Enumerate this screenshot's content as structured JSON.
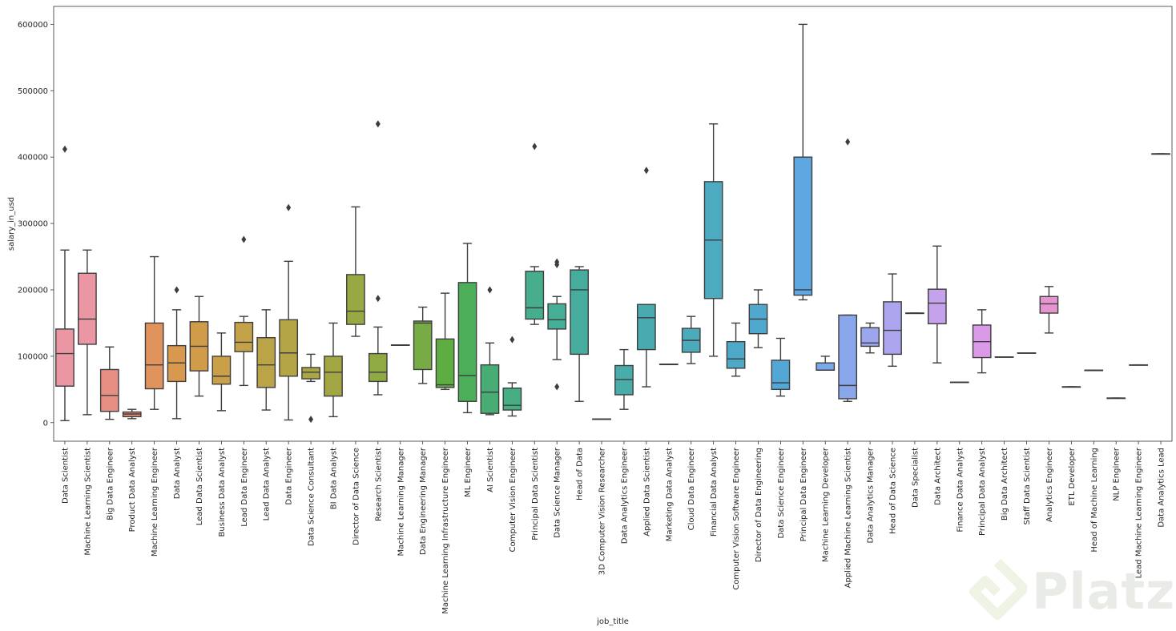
{
  "chart_data": {
    "type": "box",
    "xlabel": "job_title",
    "ylabel": "salary_in_usd",
    "ylim": [
      -28000,
      627000
    ],
    "yticks": [
      0,
      100000,
      200000,
      300000,
      400000,
      500000,
      600000
    ],
    "ytick_labels": [
      "0",
      "100000",
      "200000",
      "300000",
      "400000",
      "500000",
      "600000"
    ],
    "legend": "none",
    "grid": false,
    "boxes": [
      {
        "label": "Data Scientist",
        "color": "#ea96a3",
        "q1": 55000,
        "median": 104000,
        "q3": 141000,
        "whislo": 3000,
        "whishi": 260000,
        "fliers": [
          412000
        ]
      },
      {
        "label": "Machine Learning Scientist",
        "color": "#ea96a3",
        "q1": 118000,
        "median": 156000,
        "q3": 225000,
        "whislo": 12000,
        "whishi": 260000,
        "fliers": []
      },
      {
        "label": "Big Data Engineer",
        "color": "#e88f83",
        "q1": 17000,
        "median": 41000,
        "q3": 80000,
        "whislo": 5000,
        "whishi": 114000,
        "fliers": []
      },
      {
        "label": "Product Data Analyst",
        "color": "#e88e6e",
        "q1": 9000,
        "median": 13000,
        "q3": 16000,
        "whislo": 6000,
        "whishi": 20000,
        "fliers": []
      },
      {
        "label": "Machine Learning Engineer",
        "color": "#e0935c",
        "q1": 51000,
        "median": 87000,
        "q3": 150000,
        "whislo": 20000,
        "whishi": 250000,
        "fliers": []
      },
      {
        "label": "Data Analyst",
        "color": "#d8984e",
        "q1": 62000,
        "median": 90000,
        "q3": 116000,
        "whislo": 6000,
        "whishi": 170000,
        "fliers": [
          200000
        ]
      },
      {
        "label": "Lead Data Scientist",
        "color": "#d09c4a",
        "q1": 78000,
        "median": 115000,
        "q3": 152000,
        "whislo": 40000,
        "whishi": 190000,
        "fliers": []
      },
      {
        "label": "Business Data Analyst",
        "color": "#c99f48",
        "q1": 58000,
        "median": 70000,
        "q3": 100000,
        "whislo": 18000,
        "whishi": 135000,
        "fliers": []
      },
      {
        "label": "Lead Data Engineer",
        "color": "#c3a24a",
        "q1": 107000,
        "median": 121000,
        "q3": 151000,
        "whislo": 56000,
        "whishi": 160000,
        "fliers": [
          276000
        ]
      },
      {
        "label": "Lead Data Analyst",
        "color": "#bba447",
        "q1": 53000,
        "median": 87000,
        "q3": 128000,
        "whislo": 19000,
        "whishi": 170000,
        "fliers": []
      },
      {
        "label": "Data Engineer",
        "color": "#b4a547",
        "q1": 70000,
        "median": 105000,
        "q3": 155000,
        "whislo": 4000,
        "whishi": 243000,
        "fliers": [
          324000
        ]
      },
      {
        "label": "Data Science Consultant",
        "color": "#aba645",
        "q1": 66000,
        "median": 76000,
        "q3": 83000,
        "whislo": 62000,
        "whishi": 103000,
        "fliers": [
          5000
        ]
      },
      {
        "label": "BI Data Analyst",
        "color": "#a2a744",
        "q1": 40000,
        "median": 76000,
        "q3": 100000,
        "whislo": 9000,
        "whishi": 150000,
        "fliers": []
      },
      {
        "label": "Director of Data Science",
        "color": "#98a843",
        "q1": 148000,
        "median": 168000,
        "q3": 223000,
        "whislo": 130000,
        "whishi": 325000,
        "fliers": []
      },
      {
        "label": "Research Scientist",
        "color": "#8fa943",
        "q1": 62000,
        "median": 76000,
        "q3": 104000,
        "whislo": 42000,
        "whishi": 144000,
        "fliers": [
          187000,
          450000
        ]
      },
      {
        "label": "Machine Learning Manager",
        "color": "#84aa43",
        "q1": 117000,
        "median": 117000,
        "q3": 117000,
        "whislo": 117000,
        "whishi": 117000,
        "fliers": []
      },
      {
        "label": "Data Engineering Manager",
        "color": "#77ab45",
        "q1": 80000,
        "median": 150000,
        "q3": 153000,
        "whislo": 59000,
        "whishi": 174000,
        "fliers": []
      },
      {
        "label": "Machine Learning Infrastructure Engineer",
        "color": "#5ead42",
        "q1": 53000,
        "median": 57000,
        "q3": 126000,
        "whislo": 50000,
        "whishi": 195000,
        "fliers": []
      },
      {
        "label": "ML Engineer",
        "color": "#4dae5a",
        "q1": 32000,
        "median": 71000,
        "q3": 211000,
        "whislo": 15000,
        "whishi": 270000,
        "fliers": []
      },
      {
        "label": "AI Scientist",
        "color": "#48ad74",
        "q1": 14000,
        "median": 46000,
        "q3": 87000,
        "whislo": 12000,
        "whishi": 120000,
        "fliers": [
          200000
        ]
      },
      {
        "label": "Computer Vision Engineer",
        "color": "#47ad82",
        "q1": 19000,
        "median": 26000,
        "q3": 52000,
        "whislo": 10000,
        "whishi": 60000,
        "fliers": [
          125000
        ]
      },
      {
        "label": "Principal Data Scientist",
        "color": "#46ae8d",
        "q1": 156000,
        "median": 173000,
        "q3": 228000,
        "whislo": 148000,
        "whishi": 235000,
        "fliers": [
          416000
        ]
      },
      {
        "label": "Data Science Manager",
        "color": "#46ad96",
        "q1": 141000,
        "median": 155000,
        "q3": 179000,
        "whislo": 95000,
        "whishi": 190000,
        "fliers": [
          54000,
          238000,
          242000
        ]
      },
      {
        "label": "Head of Data",
        "color": "#46ad9e",
        "q1": 103000,
        "median": 200000,
        "q3": 230000,
        "whislo": 32000,
        "whishi": 235000,
        "fliers": []
      },
      {
        "label": "3D Computer Vision Researcher",
        "color": "#47aca5",
        "q1": 5500,
        "median": 5500,
        "q3": 5500,
        "whislo": 5500,
        "whishi": 5500,
        "fliers": []
      },
      {
        "label": "Data Analytics Engineer",
        "color": "#48acaa",
        "q1": 42000,
        "median": 65000,
        "q3": 86000,
        "whislo": 20000,
        "whishi": 110000,
        "fliers": []
      },
      {
        "label": "Applied Data Scientist",
        "color": "#49abb0",
        "q1": 110000,
        "median": 158000,
        "q3": 178000,
        "whislo": 54000,
        "whishi": 178000,
        "fliers": [
          380000
        ]
      },
      {
        "label": "Marketing Data Analyst",
        "color": "#4aabb5",
        "q1": 88000,
        "median": 88000,
        "q3": 88000,
        "whislo": 88000,
        "whishi": 88000,
        "fliers": []
      },
      {
        "label": "Cloud Data Engineer",
        "color": "#4babba",
        "q1": 106000,
        "median": 124000,
        "q3": 142000,
        "whislo": 89000,
        "whishi": 160000,
        "fliers": []
      },
      {
        "label": "Financial Data Analyst",
        "color": "#4caac1",
        "q1": 187000,
        "median": 275000,
        "q3": 363000,
        "whislo": 100000,
        "whishi": 450000,
        "fliers": []
      },
      {
        "label": "Computer Vision Software Engineer",
        "color": "#4ea9c8",
        "q1": 82000,
        "median": 96000,
        "q3": 122000,
        "whislo": 70000,
        "whishi": 150000,
        "fliers": []
      },
      {
        "label": "Director of Data Engineering",
        "color": "#50a8cf",
        "q1": 134000,
        "median": 156000,
        "q3": 178000,
        "whislo": 113000,
        "whishi": 200000,
        "fliers": []
      },
      {
        "label": "Data Science Engineer",
        "color": "#52a7d7",
        "q1": 50000,
        "median": 60000,
        "q3": 94000,
        "whislo": 40000,
        "whishi": 127000,
        "fliers": []
      },
      {
        "label": "Principal Data Engineer",
        "color": "#5ea7e1",
        "q1": 192000,
        "median": 200000,
        "q3": 400000,
        "whislo": 185000,
        "whishi": 600000,
        "fliers": []
      },
      {
        "label": "Machine Learning Developer",
        "color": "#7aa8e8",
        "q1": 79000,
        "median": 79000,
        "q3": 90000,
        "whislo": 79000,
        "whishi": 100000,
        "fliers": []
      },
      {
        "label": "Applied Machine Learning Scientist",
        "color": "#8aa6ea",
        "q1": 36000,
        "median": 56000,
        "q3": 162000,
        "whislo": 32000,
        "whishi": 162000,
        "fliers": [
          423000
        ]
      },
      {
        "label": "Data Analytics Manager",
        "color": "#9ba6ec",
        "q1": 115000,
        "median": 120000,
        "q3": 143000,
        "whislo": 105000,
        "whishi": 150000,
        "fliers": []
      },
      {
        "label": "Head of Data Science",
        "color": "#aaa5ec",
        "q1": 103000,
        "median": 139000,
        "q3": 182000,
        "whislo": 85000,
        "whishi": 224000,
        "fliers": []
      },
      {
        "label": "Data Specialist",
        "color": "#b7a4ec",
        "q1": 165000,
        "median": 165000,
        "q3": 165000,
        "whislo": 165000,
        "whishi": 165000,
        "fliers": []
      },
      {
        "label": "Data Architect",
        "color": "#c4a2ec",
        "q1": 149000,
        "median": 180000,
        "q3": 201000,
        "whislo": 90000,
        "whishi": 266000,
        "fliers": []
      },
      {
        "label": "Finance Data Analyst",
        "color": "#d09fea",
        "q1": 61000,
        "median": 61000,
        "q3": 61000,
        "whislo": 61000,
        "whishi": 61000,
        "fliers": []
      },
      {
        "label": "Principal Data Analyst",
        "color": "#db9ae8",
        "q1": 98000,
        "median": 122000,
        "q3": 147000,
        "whislo": 75000,
        "whishi": 170000,
        "fliers": []
      },
      {
        "label": "Big Data Architect",
        "color": "#e296e2",
        "q1": 99000,
        "median": 99000,
        "q3": 99000,
        "whislo": 99000,
        "whishi": 99000,
        "fliers": []
      },
      {
        "label": "Staff Data Scientist",
        "color": "#e595d9",
        "q1": 105000,
        "median": 105000,
        "q3": 105000,
        "whislo": 105000,
        "whishi": 105000,
        "fliers": []
      },
      {
        "label": "Analytics Engineer",
        "color": "#e594cf",
        "q1": 165000,
        "median": 179000,
        "q3": 190000,
        "whislo": 135000,
        "whishi": 205000,
        "fliers": []
      },
      {
        "label": "ETL Developer",
        "color": "#e694c6",
        "q1": 54000,
        "median": 54000,
        "q3": 54000,
        "whislo": 54000,
        "whishi": 54000,
        "fliers": []
      },
      {
        "label": "Head of Machine Learning",
        "color": "#e795bd",
        "q1": 79000,
        "median": 79000,
        "q3": 79000,
        "whislo": 79000,
        "whishi": 79000,
        "fliers": []
      },
      {
        "label": "NLP Engineer",
        "color": "#e895b4",
        "q1": 37000,
        "median": 37000,
        "q3": 37000,
        "whislo": 37000,
        "whishi": 37000,
        "fliers": []
      },
      {
        "label": "Lead Machine Learning Engineer",
        "color": "#e995ac",
        "q1": 87000,
        "median": 87000,
        "q3": 87000,
        "whislo": 87000,
        "whishi": 87000,
        "fliers": []
      },
      {
        "label": "Data Analytics Lead",
        "color": "#ea96a3",
        "q1": 405000,
        "median": 405000,
        "q3": 405000,
        "whislo": 405000,
        "whishi": 405000,
        "fliers": []
      }
    ]
  },
  "watermark": {
    "text": "Platzi",
    "icon": "platzi-logo-icon"
  }
}
